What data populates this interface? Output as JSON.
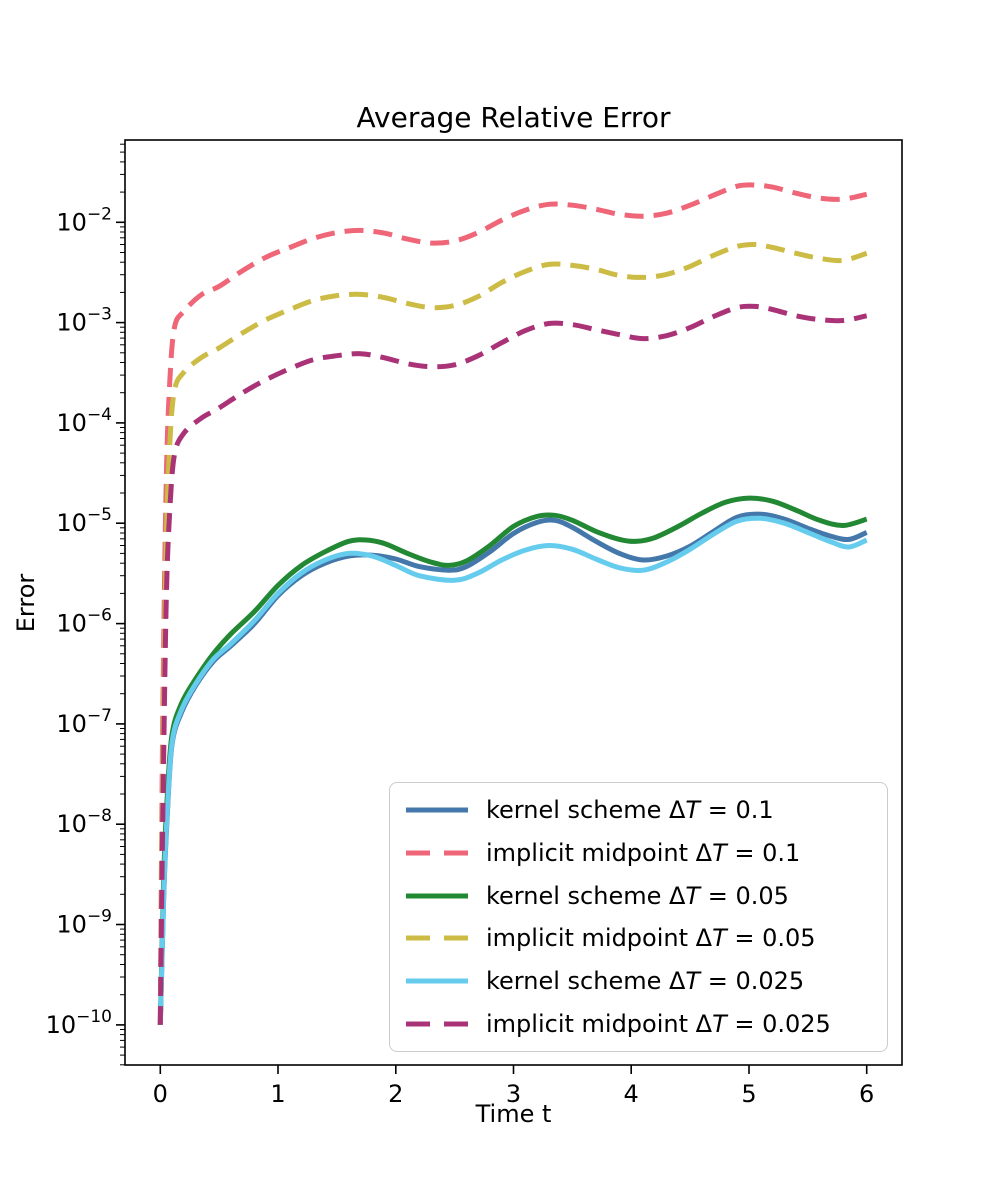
{
  "chart_data": {
    "type": "line",
    "title": "Average Relative Error",
    "xlabel": "Time t",
    "ylabel": "Error",
    "x_axis_scale": "linear",
    "y_axis_scale": "log",
    "grid": false,
    "legend_position": "lower-right-inside",
    "x_ticks": [
      0,
      1,
      2,
      3,
      4,
      5,
      6
    ],
    "y_tick_exponents": [
      -2,
      -3,
      -4,
      -5,
      -6,
      -7,
      -8,
      -9,
      -10
    ],
    "xlim": [
      -0.3,
      6.3
    ],
    "ylog_lim": [
      -10.4,
      -1.18
    ],
    "series": [
      {
        "label_prefix": "kernel scheme Δ",
        "label_var": "T",
        "label_suffix": " = 0.1",
        "color": "#4477AA",
        "style": "solid",
        "points": [
          [
            0,
            1e-10
          ],
          [
            0.03,
            2e-09
          ],
          [
            0.06,
            1.3e-08
          ],
          [
            0.1,
            6.3e-08
          ],
          [
            0.18,
            1.3e-07
          ],
          [
            0.3,
            2.4e-07
          ],
          [
            0.45,
            4.2e-07
          ],
          [
            0.6,
            6e-07
          ],
          [
            0.8,
            1e-06
          ],
          [
            1.0,
            1.9e-06
          ],
          [
            1.2,
            3e-06
          ],
          [
            1.4,
            4e-06
          ],
          [
            1.6,
            4.7e-06
          ],
          [
            1.8,
            4.8e-06
          ],
          [
            2.0,
            4.4e-06
          ],
          [
            2.2,
            3.7e-06
          ],
          [
            2.45,
            3.4e-06
          ],
          [
            2.6,
            3.7e-06
          ],
          [
            2.8,
            5.2e-06
          ],
          [
            3.0,
            7.9e-06
          ],
          [
            3.2,
            1.02e-05
          ],
          [
            3.35,
            1.07e-05
          ],
          [
            3.5,
            9.1e-06
          ],
          [
            3.7,
            6.6e-06
          ],
          [
            3.9,
            5e-06
          ],
          [
            4.1,
            4.3e-06
          ],
          [
            4.3,
            4.7e-06
          ],
          [
            4.5,
            5.9e-06
          ],
          [
            4.7,
            8.3e-06
          ],
          [
            4.9,
            1.15e-05
          ],
          [
            5.1,
            1.23e-05
          ],
          [
            5.3,
            1.1e-05
          ],
          [
            5.5,
            8.9e-06
          ],
          [
            5.7,
            7.4e-06
          ],
          [
            5.85,
            6.9e-06
          ],
          [
            6.0,
            8.1e-06
          ]
        ]
      },
      {
        "label_prefix": "implicit midpoint Δ",
        "label_var": "T",
        "label_suffix": " = 0.1",
        "color": "#EE6677",
        "style": "dashed",
        "points": [
          [
            0,
            1e-10
          ],
          [
            0.02,
            1e-07
          ],
          [
            0.05,
            2.5e-05
          ],
          [
            0.08,
            0.00025
          ],
          [
            0.12,
            0.00089
          ],
          [
            0.2,
            0.0013
          ],
          [
            0.35,
            0.0019
          ],
          [
            0.5,
            0.0023
          ],
          [
            0.7,
            0.0033
          ],
          [
            0.9,
            0.0045
          ],
          [
            1.1,
            0.0056
          ],
          [
            1.3,
            0.0069
          ],
          [
            1.5,
            0.0079
          ],
          [
            1.7,
            0.0083
          ],
          [
            1.9,
            0.0078
          ],
          [
            2.1,
            0.0068
          ],
          [
            2.3,
            0.0062
          ],
          [
            2.5,
            0.0065
          ],
          [
            2.7,
            0.0079
          ],
          [
            2.9,
            0.0105
          ],
          [
            3.1,
            0.0132
          ],
          [
            3.3,
            0.0151
          ],
          [
            3.5,
            0.0148
          ],
          [
            3.7,
            0.0135
          ],
          [
            3.9,
            0.012
          ],
          [
            4.1,
            0.0115
          ],
          [
            4.3,
            0.0123
          ],
          [
            4.5,
            0.0148
          ],
          [
            4.7,
            0.0186
          ],
          [
            4.9,
            0.0229
          ],
          [
            5.05,
            0.0235
          ],
          [
            5.2,
            0.0224
          ],
          [
            5.4,
            0.0195
          ],
          [
            5.6,
            0.0174
          ],
          [
            5.8,
            0.017
          ],
          [
            6.0,
            0.019
          ]
        ]
      },
      {
        "label_prefix": "kernel scheme Δ",
        "label_var": "T",
        "label_suffix": " = 0.05",
        "color": "#228833",
        "style": "solid",
        "points": [
          [
            0,
            1e-10
          ],
          [
            0.03,
            3.2e-09
          ],
          [
            0.06,
            2e-08
          ],
          [
            0.1,
            7.9e-08
          ],
          [
            0.18,
            1.6e-07
          ],
          [
            0.3,
            2.8e-07
          ],
          [
            0.45,
            5e-07
          ],
          [
            0.6,
            7.9e-07
          ],
          [
            0.8,
            1.32e-06
          ],
          [
            1.0,
            2.4e-06
          ],
          [
            1.2,
            3.8e-06
          ],
          [
            1.4,
            5.2e-06
          ],
          [
            1.6,
            6.6e-06
          ],
          [
            1.75,
            6.8e-06
          ],
          [
            1.9,
            6.3e-06
          ],
          [
            2.1,
            5e-06
          ],
          [
            2.3,
            4.1e-06
          ],
          [
            2.45,
            3.8e-06
          ],
          [
            2.6,
            4.2e-06
          ],
          [
            2.8,
            6e-06
          ],
          [
            3.0,
            9.3e-06
          ],
          [
            3.2,
            1.17e-05
          ],
          [
            3.35,
            1.2e-05
          ],
          [
            3.5,
            1.07e-05
          ],
          [
            3.7,
            8.3e-06
          ],
          [
            3.9,
            6.9e-06
          ],
          [
            4.05,
            6.6e-06
          ],
          [
            4.2,
            7.2e-06
          ],
          [
            4.4,
            9.3e-06
          ],
          [
            4.6,
            1.26e-05
          ],
          [
            4.8,
            1.62e-05
          ],
          [
            5.0,
            1.78e-05
          ],
          [
            5.2,
            1.66e-05
          ],
          [
            5.4,
            1.35e-05
          ],
          [
            5.6,
            1.07e-05
          ],
          [
            5.8,
            9.5e-06
          ],
          [
            6.0,
            1.1e-05
          ]
        ]
      },
      {
        "label_prefix": "implicit midpoint Δ",
        "label_var": "T",
        "label_suffix": " = 0.05",
        "color": "#CCBB44",
        "style": "dashed",
        "points": [
          [
            0,
            1e-10
          ],
          [
            0.02,
            3e-08
          ],
          [
            0.05,
            6e-06
          ],
          [
            0.08,
            6e-05
          ],
          [
            0.12,
            0.00021
          ],
          [
            0.2,
            0.00032
          ],
          [
            0.35,
            0.00045
          ],
          [
            0.5,
            0.00056
          ],
          [
            0.7,
            0.00079
          ],
          [
            0.9,
            0.00107
          ],
          [
            1.1,
            0.00135
          ],
          [
            1.3,
            0.00166
          ],
          [
            1.5,
            0.00186
          ],
          [
            1.7,
            0.00191
          ],
          [
            1.9,
            0.00178
          ],
          [
            2.1,
            0.00155
          ],
          [
            2.3,
            0.00141
          ],
          [
            2.5,
            0.00148
          ],
          [
            2.7,
            0.00182
          ],
          [
            2.9,
            0.00251
          ],
          [
            3.1,
            0.00324
          ],
          [
            3.3,
            0.0038
          ],
          [
            3.5,
            0.00372
          ],
          [
            3.7,
            0.00339
          ],
          [
            3.9,
            0.00295
          ],
          [
            4.1,
            0.00282
          ],
          [
            4.3,
            0.00302
          ],
          [
            4.5,
            0.00363
          ],
          [
            4.7,
            0.00468
          ],
          [
            4.9,
            0.00575
          ],
          [
            5.05,
            0.006
          ],
          [
            5.2,
            0.00562
          ],
          [
            5.4,
            0.0049
          ],
          [
            5.6,
            0.00437
          ],
          [
            5.8,
            0.00417
          ],
          [
            6.0,
            0.0049
          ]
        ]
      },
      {
        "label_prefix": "kernel scheme Δ",
        "label_var": "T",
        "label_suffix": " = 0.025",
        "color": "#66CCEE",
        "style": "solid",
        "points": [
          [
            0,
            1e-10
          ],
          [
            0.03,
            2.2e-09
          ],
          [
            0.06,
            1.4e-08
          ],
          [
            0.1,
            6.6e-08
          ],
          [
            0.18,
            1.38e-07
          ],
          [
            0.3,
            2.5e-07
          ],
          [
            0.45,
            4.4e-07
          ],
          [
            0.6,
            6.3e-07
          ],
          [
            0.8,
            1.07e-06
          ],
          [
            1.0,
            2e-06
          ],
          [
            1.2,
            3.2e-06
          ],
          [
            1.4,
            4.3e-06
          ],
          [
            1.6,
            5e-06
          ],
          [
            1.8,
            4.7e-06
          ],
          [
            2.0,
            3.8e-06
          ],
          [
            2.2,
            3e-06
          ],
          [
            2.5,
            2.7e-06
          ],
          [
            2.7,
            3.2e-06
          ],
          [
            2.9,
            4.3e-06
          ],
          [
            3.1,
            5.4e-06
          ],
          [
            3.3,
            6e-06
          ],
          [
            3.5,
            5.5e-06
          ],
          [
            3.7,
            4.4e-06
          ],
          [
            3.9,
            3.6e-06
          ],
          [
            4.1,
            3.4e-06
          ],
          [
            4.3,
            4.1e-06
          ],
          [
            4.5,
            5.5e-06
          ],
          [
            4.7,
            7.8e-06
          ],
          [
            4.9,
            1.05e-05
          ],
          [
            5.1,
            1.12e-05
          ],
          [
            5.3,
            1e-05
          ],
          [
            5.5,
            8.1e-06
          ],
          [
            5.7,
            6.5e-06
          ],
          [
            5.85,
            5.8e-06
          ],
          [
            6.0,
            6.8e-06
          ]
        ]
      },
      {
        "label_prefix": "implicit midpoint Δ",
        "label_var": "T",
        "label_suffix": " = 0.025",
        "color": "#AA3377",
        "style": "dashed",
        "points": [
          [
            0,
            1e-10
          ],
          [
            0.02,
            1e-08
          ],
          [
            0.05,
            1.6e-06
          ],
          [
            0.08,
            1.3e-05
          ],
          [
            0.12,
            4.8e-05
          ],
          [
            0.2,
            7.9e-05
          ],
          [
            0.35,
            0.000112
          ],
          [
            0.5,
            0.000141
          ],
          [
            0.7,
            0.0002
          ],
          [
            0.9,
            0.00027
          ],
          [
            1.1,
            0.000347
          ],
          [
            1.3,
            0.000427
          ],
          [
            1.5,
            0.000468
          ],
          [
            1.7,
            0.00049
          ],
          [
            1.9,
            0.000447
          ],
          [
            2.1,
            0.000389
          ],
          [
            2.3,
            0.000363
          ],
          [
            2.5,
            0.00038
          ],
          [
            2.7,
            0.000468
          ],
          [
            2.9,
            0.000631
          ],
          [
            3.1,
            0.000832
          ],
          [
            3.3,
            0.00098
          ],
          [
            3.5,
            0.000955
          ],
          [
            3.7,
            0.000851
          ],
          [
            3.9,
            0.000759
          ],
          [
            4.1,
            0.000692
          ],
          [
            4.3,
            0.000741
          ],
          [
            4.5,
            0.000891
          ],
          [
            4.7,
            0.00115
          ],
          [
            4.9,
            0.00141
          ],
          [
            5.05,
            0.00145
          ],
          [
            5.2,
            0.00135
          ],
          [
            5.4,
            0.00117
          ],
          [
            5.6,
            0.00107
          ],
          [
            5.8,
            0.00105
          ],
          [
            6.0,
            0.00117
          ]
        ]
      }
    ]
  }
}
